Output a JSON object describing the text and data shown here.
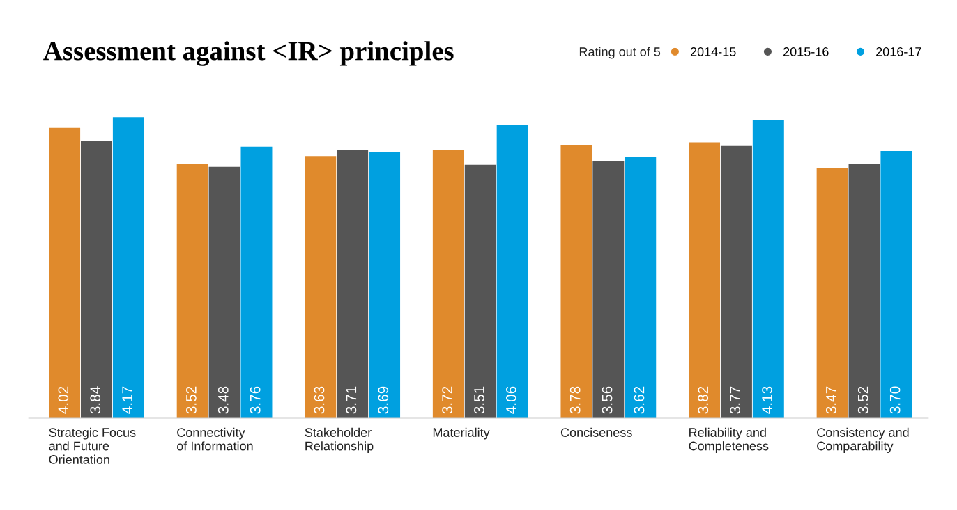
{
  "chart_data": {
    "type": "bar",
    "title": "Assessment against <IR> principles",
    "legend_title": "Rating out of 5",
    "legend": "top right",
    "categories": [
      "Strategic Focus\nand Future\nOrientation",
      "Connectivity\nof Information",
      "Stakeholder\nRelationship",
      "Materiality",
      "Conciseness",
      "Reliability and\nCompleteness",
      "Consistency and\nComparability"
    ],
    "series": [
      {
        "name": "2014-15",
        "color": "#e08a2c",
        "values": [
          4.02,
          3.52,
          3.63,
          3.72,
          3.78,
          3.82,
          3.47
        ],
        "value_labels": [
          "4.02",
          "3.52",
          "3.63",
          "3.72",
          "3.78",
          "3.82",
          "3.47"
        ]
      },
      {
        "name": "2015-16",
        "color": "#555555",
        "values": [
          3.84,
          3.48,
          3.71,
          3.51,
          3.56,
          3.77,
          3.52
        ],
        "value_labels": [
          "3.84",
          "3.48",
          "3.71",
          "3.51",
          "3.56",
          "3.77",
          "3.52"
        ]
      },
      {
        "name": "2016-17",
        "color": "#00a0e0",
        "values": [
          4.17,
          3.76,
          3.69,
          4.06,
          3.62,
          4.13,
          3.7
        ],
        "value_labels": [
          "4.17",
          "3.76",
          "3.69",
          "4.06",
          "3.62",
          "4.13",
          "3.70"
        ]
      }
    ]
  }
}
